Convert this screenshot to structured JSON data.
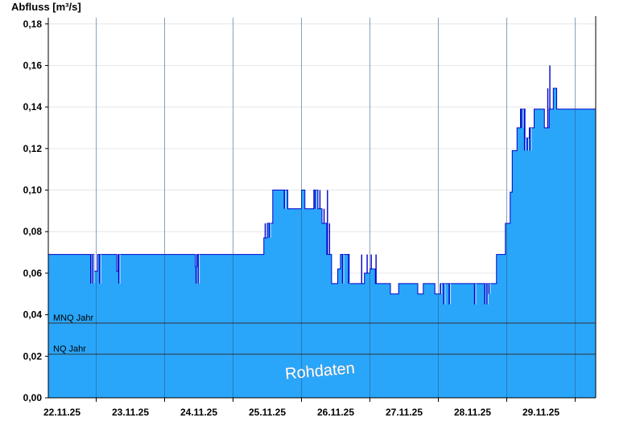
{
  "chart_data": {
    "type": "area",
    "title": "",
    "ylabel": "Abfluss [m³/s]",
    "xlabel": "",
    "ylim": [
      0,
      0.183
    ],
    "yticks": [
      0,
      0.02,
      0.04,
      0.06,
      0.08,
      0.1,
      0.12,
      0.14,
      0.16,
      0.18
    ],
    "ytick_labels": [
      "0,00",
      "0,02",
      "0,04",
      "0,06",
      "0,08",
      "0,10",
      "0,12",
      "0,14",
      "0,16",
      "0,18"
    ],
    "xlim_days": [
      21.3,
      29.3
    ],
    "day_boundaries": [
      22,
      23,
      24,
      25,
      26,
      27,
      28,
      29
    ],
    "xtick_labels": [
      "22.11.25",
      "23.11.25",
      "24.11.25",
      "25.11.25",
      "26.11.25",
      "27.11.25",
      "28.11.25",
      "29.11.25"
    ],
    "grid": true,
    "colors": {
      "fill": "#29a6fa",
      "line": "#0000cc",
      "refline": "#333333"
    },
    "reference_lines": [
      {
        "name": "MNQ Jahr",
        "value": 0.036
      },
      {
        "name": "NQ Jahr",
        "value": 0.021
      }
    ],
    "watermark": "Rohdaten",
    "series": [
      {
        "x": [
          21.3,
          21.97,
          21.97,
          22.02,
          22.02,
          22.3,
          22.3,
          22.32,
          22.32,
          23.45,
          23.45,
          23.47,
          23.47,
          24.45,
          24.45,
          24.5,
          24.5,
          24.58,
          24.58,
          24.8,
          24.8,
          25.0,
          25.0,
          25.05,
          25.05,
          25.18,
          25.18,
          25.24,
          25.24,
          25.3,
          25.3,
          25.37,
          25.37,
          25.44,
          25.44,
          25.53,
          25.53,
          25.57,
          25.57,
          25.7,
          25.7,
          25.92,
          25.92,
          26.0,
          26.0,
          26.08,
          26.08,
          26.3,
          26.3,
          26.42,
          26.42,
          26.7,
          26.7,
          26.78,
          26.78,
          26.95,
          26.95,
          27.03,
          27.03,
          27.85,
          27.85,
          27.98,
          27.98,
          28.05,
          28.05,
          28.08,
          28.08,
          28.15,
          28.15,
          28.2,
          28.2,
          28.27,
          28.27,
          28.33,
          28.33,
          28.4,
          28.4,
          28.44,
          28.44,
          28.55,
          28.55,
          28.62,
          28.62,
          28.68,
          28.68,
          28.73,
          28.73,
          28.78,
          28.78,
          29.3
        ],
        "values": [
          0.069,
          0.069,
          0.061,
          0.061,
          0.069,
          0.069,
          0.061,
          0.061,
          0.069,
          0.069,
          0.063,
          0.063,
          0.069,
          0.069,
          0.077,
          0.077,
          0.084,
          0.084,
          0.1,
          0.1,
          0.091,
          0.091,
          0.1,
          0.1,
          0.091,
          0.091,
          0.1,
          0.1,
          0.091,
          0.091,
          0.084,
          0.084,
          0.069,
          0.069,
          0.055,
          0.055,
          0.062,
          0.062,
          0.069,
          0.069,
          0.055,
          0.055,
          0.06,
          0.06,
          0.062,
          0.062,
          0.055,
          0.055,
          0.05,
          0.05,
          0.055,
          0.055,
          0.05,
          0.05,
          0.055,
          0.055,
          0.05,
          0.05,
          0.055,
          0.055,
          0.069,
          0.069,
          0.084,
          0.084,
          0.099,
          0.099,
          0.119,
          0.119,
          0.13,
          0.13,
          0.139,
          0.139,
          0.125,
          0.125,
          0.13,
          0.13,
          0.139,
          0.139,
          0.139,
          0.139,
          0.13,
          0.13,
          0.139,
          0.139,
          0.149,
          0.149,
          0.139,
          0.139,
          0.139,
          0.139
        ]
      }
    ],
    "spikes": [
      {
        "x": 21.92,
        "y": 0.055
      },
      {
        "x": 21.95,
        "y": 0.055
      },
      {
        "x": 22.0,
        "y": 0.061
      },
      {
        "x": 22.05,
        "y": 0.055
      },
      {
        "x": 22.3,
        "y": 0.061
      },
      {
        "x": 22.33,
        "y": 0.055
      },
      {
        "x": 23.46,
        "y": 0.055
      },
      {
        "x": 23.49,
        "y": 0.055
      },
      {
        "x": 24.47,
        "y": 0.084
      },
      {
        "x": 24.5,
        "y": 0.084
      },
      {
        "x": 24.53,
        "y": 0.077
      },
      {
        "x": 24.72,
        "y": 0.1
      },
      {
        "x": 24.75,
        "y": 0.091
      },
      {
        "x": 25.1,
        "y": 0.091
      },
      {
        "x": 25.2,
        "y": 0.091
      },
      {
        "x": 25.25,
        "y": 0.091
      },
      {
        "x": 25.27,
        "y": 0.1
      },
      {
        "x": 25.33,
        "y": 0.091
      },
      {
        "x": 25.38,
        "y": 0.1
      },
      {
        "x": 25.41,
        "y": 0.084
      },
      {
        "x": 25.58,
        "y": 0.069
      },
      {
        "x": 25.6,
        "y": 0.055
      },
      {
        "x": 25.66,
        "y": 0.069
      },
      {
        "x": 25.69,
        "y": 0.055
      },
      {
        "x": 25.88,
        "y": 0.069
      },
      {
        "x": 25.91,
        "y": 0.055
      },
      {
        "x": 25.96,
        "y": 0.069
      },
      {
        "x": 26.02,
        "y": 0.069
      },
      {
        "x": 26.06,
        "y": 0.062
      },
      {
        "x": 26.09,
        "y": 0.069
      },
      {
        "x": 27.03,
        "y": 0.05
      },
      {
        "x": 27.08,
        "y": 0.045
      },
      {
        "x": 27.16,
        "y": 0.045
      },
      {
        "x": 27.53,
        "y": 0.045
      },
      {
        "x": 27.68,
        "y": 0.045
      },
      {
        "x": 27.71,
        "y": 0.045
      },
      {
        "x": 27.74,
        "y": 0.05
      },
      {
        "x": 28.22,
        "y": 0.13
      },
      {
        "x": 28.26,
        "y": 0.119
      },
      {
        "x": 28.3,
        "y": 0.119
      },
      {
        "x": 28.34,
        "y": 0.119
      },
      {
        "x": 28.6,
        "y": 0.149
      },
      {
        "x": 28.63,
        "y": 0.16
      }
    ]
  }
}
